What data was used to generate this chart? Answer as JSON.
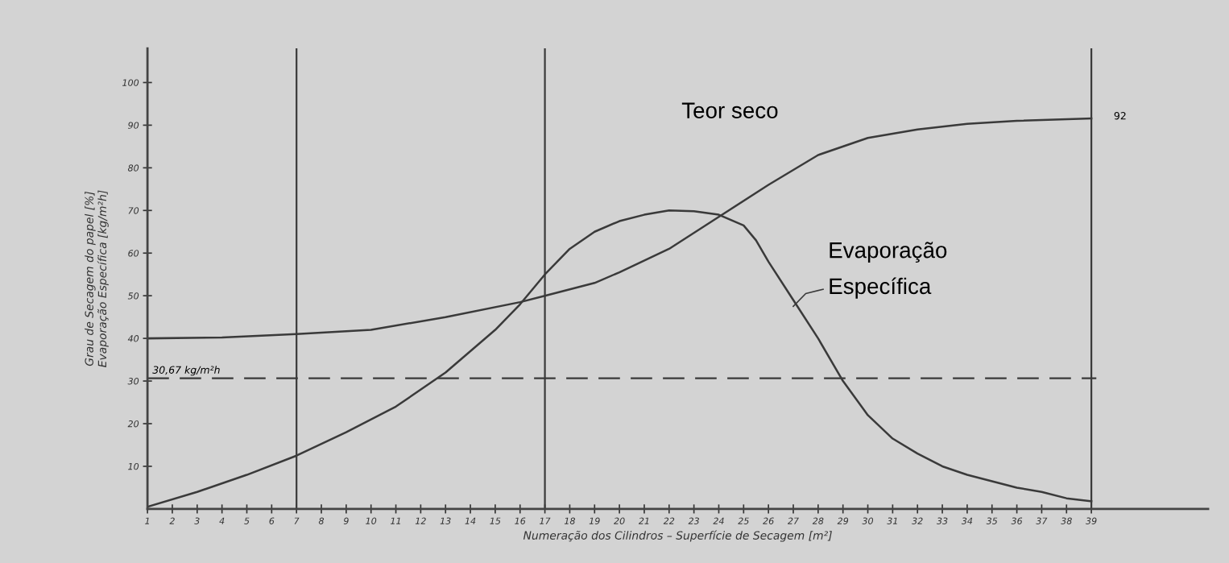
{
  "chart_data": {
    "type": "line",
    "xlabel": "Numeração dos Cilindros – Superfície de Secagem [m²]",
    "ylabel": "Grau de Secagem do papel [%]\nEvaporação Específica [kg/m²h]",
    "series": [
      {
        "name": "Teor seco",
        "color": "#3a3a3a",
        "x": [
          1,
          4,
          7,
          10,
          13,
          16,
          17,
          19,
          20,
          22,
          24,
          26,
          28,
          30,
          32,
          34,
          36,
          39
        ],
        "values": [
          40,
          40.2,
          41,
          42,
          45,
          48.5,
          50,
          53,
          55.5,
          61,
          68.5,
          76,
          83,
          87,
          89,
          90.3,
          91,
          91.6
        ]
      },
      {
        "name": "Evaporação\nEspecífica",
        "color": "#3a3a3a",
        "x": [
          1,
          3,
          5,
          7,
          9,
          11,
          13,
          15,
          16,
          17,
          18,
          19,
          20,
          21,
          22,
          23,
          24,
          25,
          25.5,
          26,
          27,
          28,
          29,
          30,
          31,
          32,
          33,
          34,
          35,
          36,
          37,
          38,
          39
        ],
        "values": [
          0.5,
          4,
          8,
          12.5,
          18,
          24,
          32,
          42,
          48,
          55,
          61,
          65,
          67.5,
          69,
          70,
          69.8,
          69,
          66.5,
          63,
          58,
          49,
          40,
          30,
          22,
          16.5,
          13,
          10,
          8,
          6.5,
          5,
          4,
          2.5,
          1.8
        ]
      }
    ],
    "xlim": [
      1,
      43.7
    ],
    "ylim": [
      0,
      108
    ],
    "xticks": [
      1,
      2,
      3,
      4,
      5,
      6,
      7,
      8,
      9,
      10,
      11,
      12,
      13,
      14,
      15,
      16,
      17,
      18,
      19,
      20,
      21,
      22,
      23,
      24,
      25,
      26,
      27,
      28,
      29,
      30,
      31,
      32,
      33,
      34,
      35,
      36,
      37,
      38,
      39
    ],
    "yticks": [
      10,
      20,
      30,
      40,
      50,
      60,
      70,
      80,
      90,
      100
    ],
    "ref_lines": [
      {
        "axis": "x",
        "value": 7,
        "label": null,
        "color": "#3a3a3a"
      },
      {
        "axis": "x",
        "value": 17,
        "label": null,
        "color": "#3a3a3a"
      },
      {
        "axis": "x",
        "value": 39,
        "label": null,
        "color": "#3a3a3a"
      },
      {
        "axis": "y",
        "value": 30.67,
        "label": "30,67 kg/m²h",
        "color": "#3a3a3a",
        "line_style": "dashed"
      }
    ],
    "annotations": [
      {
        "text": "92",
        "x": 39,
        "y": 92
      }
    ],
    "grid": false,
    "legend": false,
    "marker": "none",
    "line_style": "solid"
  }
}
